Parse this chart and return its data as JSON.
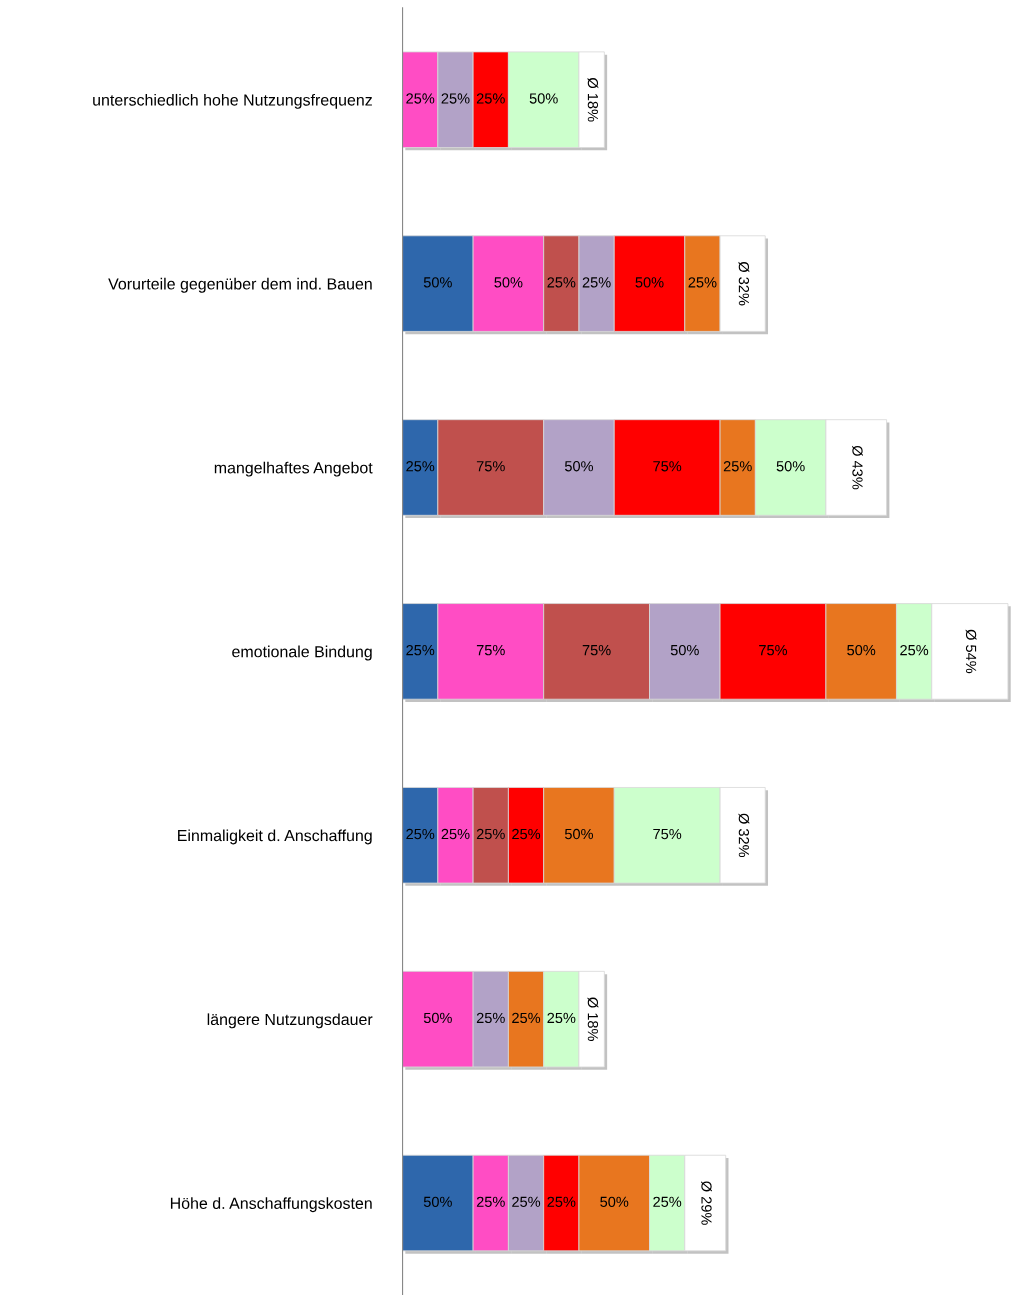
{
  "chart_data": {
    "type": "bar",
    "orientation": "horizontal",
    "stacked": true,
    "tick_labels": "y",
    "grid": false,
    "categories": [
      "unterschiedlich hohe Nutzungsfrequenz",
      "Vorurteile gegenüber dem ind. Bauen",
      "mangelhaftes Angebot",
      "emotionale Bindung",
      "Einmaligkeit d. Anschaffung",
      "längere Nutzungsdauer",
      "Höhe d. Anschaffungskosten"
    ],
    "series": [
      {
        "color": "#2e67ac",
        "values": [
          null,
          50,
          25,
          25,
          25,
          null,
          50
        ],
        "value_labels": [
          null,
          "50%",
          "25%",
          "25%",
          "25%",
          null,
          "50%"
        ]
      },
      {
        "color": "#ff4dc4",
        "values": [
          25,
          50,
          null,
          75,
          25,
          50,
          25
        ],
        "value_labels": [
          "25%",
          "50%",
          null,
          "75%",
          "25%",
          "50%",
          "25%"
        ]
      },
      {
        "color": "#c0504d",
        "values": [
          null,
          25,
          75,
          75,
          25,
          null,
          null
        ],
        "value_labels": [
          null,
          "25%",
          "75%",
          "75%",
          "25%",
          null,
          null
        ]
      },
      {
        "color": "#b2a2c7",
        "values": [
          25,
          25,
          50,
          50,
          null,
          25,
          25
        ],
        "value_labels": [
          "25%",
          "25%",
          "50%",
          "50%",
          null,
          "25%",
          "25%"
        ]
      },
      {
        "color": "#ff0000",
        "values": [
          25,
          50,
          75,
          75,
          25,
          null,
          25
        ],
        "value_labels": [
          "25%",
          "50%",
          "75%",
          "75%",
          "25%",
          null,
          "25%"
        ]
      },
      {
        "color": "#e8761f",
        "values": [
          null,
          25,
          25,
          50,
          50,
          25,
          50
        ],
        "value_labels": [
          null,
          "25%",
          "25%",
          "50%",
          "50%",
          "25%",
          "50%"
        ]
      },
      {
        "color": "#ccffcc",
        "values": [
          50,
          null,
          50,
          25,
          75,
          25,
          25
        ],
        "value_labels": [
          "50%",
          null,
          "50%",
          "25%",
          "75%",
          "25%",
          "25%"
        ]
      },
      {
        "color": "#ffffff",
        "values": [
          18,
          32,
          43,
          54,
          32,
          18,
          29
        ],
        "value_labels": [
          "Ø 18%",
          "Ø 32%",
          "Ø 43%",
          "Ø 54%",
          "Ø 32%",
          "Ø 18%",
          "Ø 29%"
        ]
      }
    ]
  }
}
